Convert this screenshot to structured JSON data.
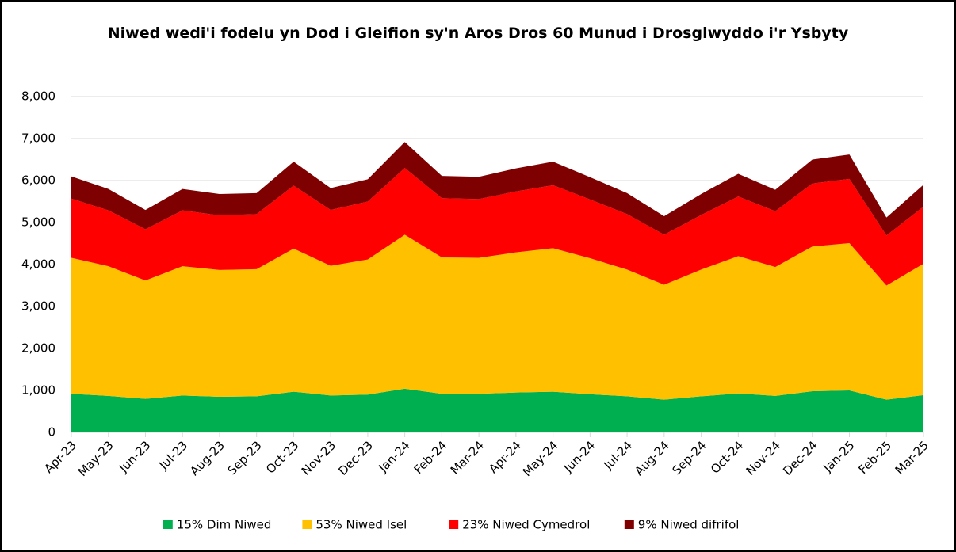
{
  "chart_data": {
    "type": "stacked_area",
    "title": "Niwed wedi'i fodelu yn Dod i Gleifion sy'n Aros Dros 60 Munud i Drosglwyddo i'r Ysbyty",
    "categories": [
      "Apr-23",
      "May-23",
      "Jun-23",
      "Jul-23",
      "Aug-23",
      "Sep-23",
      "Oct-23",
      "Nov-23",
      "Dec-23",
      "Jan-24",
      "Feb-24",
      "Mar-24",
      "Apr-24",
      "May-24",
      "Jun-24",
      "Jul-24",
      "Aug-24",
      "Sep-24",
      "Oct-24",
      "Nov-24",
      "Dec-24",
      "Jan-25",
      "Feb-25",
      "Mar-25"
    ],
    "series": [
      {
        "name": "15% Dim Niwed",
        "color": "#00b050",
        "values": [
          920,
          870,
          800,
          880,
          850,
          860,
          970,
          880,
          900,
          1040,
          920,
          920,
          950,
          970,
          910,
          860,
          780,
          860,
          930,
          870,
          980,
          1000,
          780,
          890
        ]
      },
      {
        "name": "53% Niwed Isel",
        "color": "#ffc000",
        "values": [
          3240,
          3090,
          2820,
          3080,
          3020,
          3030,
          3410,
          3090,
          3220,
          3670,
          3250,
          3240,
          3340,
          3420,
          3240,
          3020,
          2740,
          3020,
          3270,
          3070,
          3450,
          3510,
          2720,
          3130
        ]
      },
      {
        "name": "23% Niwed Cymedrol",
        "color": "#ff0000",
        "values": [
          1410,
          1330,
          1220,
          1330,
          1300,
          1310,
          1500,
          1330,
          1380,
          1590,
          1410,
          1400,
          1450,
          1500,
          1400,
          1320,
          1190,
          1300,
          1420,
          1330,
          1500,
          1530,
          1190,
          1360
        ]
      },
      {
        "name": "9% Niwed difrifol",
        "color": "#7f0000",
        "values": [
          530,
          510,
          460,
          510,
          510,
          500,
          570,
          520,
          530,
          620,
          530,
          530,
          550,
          560,
          530,
          500,
          440,
          500,
          540,
          510,
          570,
          580,
          430,
          520
        ]
      }
    ],
    "ylim": [
      0,
      8000
    ],
    "yticks": [
      0,
      {
        "value": 1000,
        "label": "1,000"
      },
      {
        "value": 2000,
        "label": "2,000"
      },
      {
        "value": 3000,
        "label": "3,000"
      },
      {
        "value": 4000,
        "label": "4,000"
      },
      {
        "value": 5000,
        "label": "5,000"
      },
      {
        "value": 6000,
        "label": "6,000"
      },
      {
        "value": 7000,
        "label": "7,000"
      },
      {
        "value": 8000,
        "label": "8,000"
      }
    ],
    "grid": true,
    "legend": "bottom"
  }
}
